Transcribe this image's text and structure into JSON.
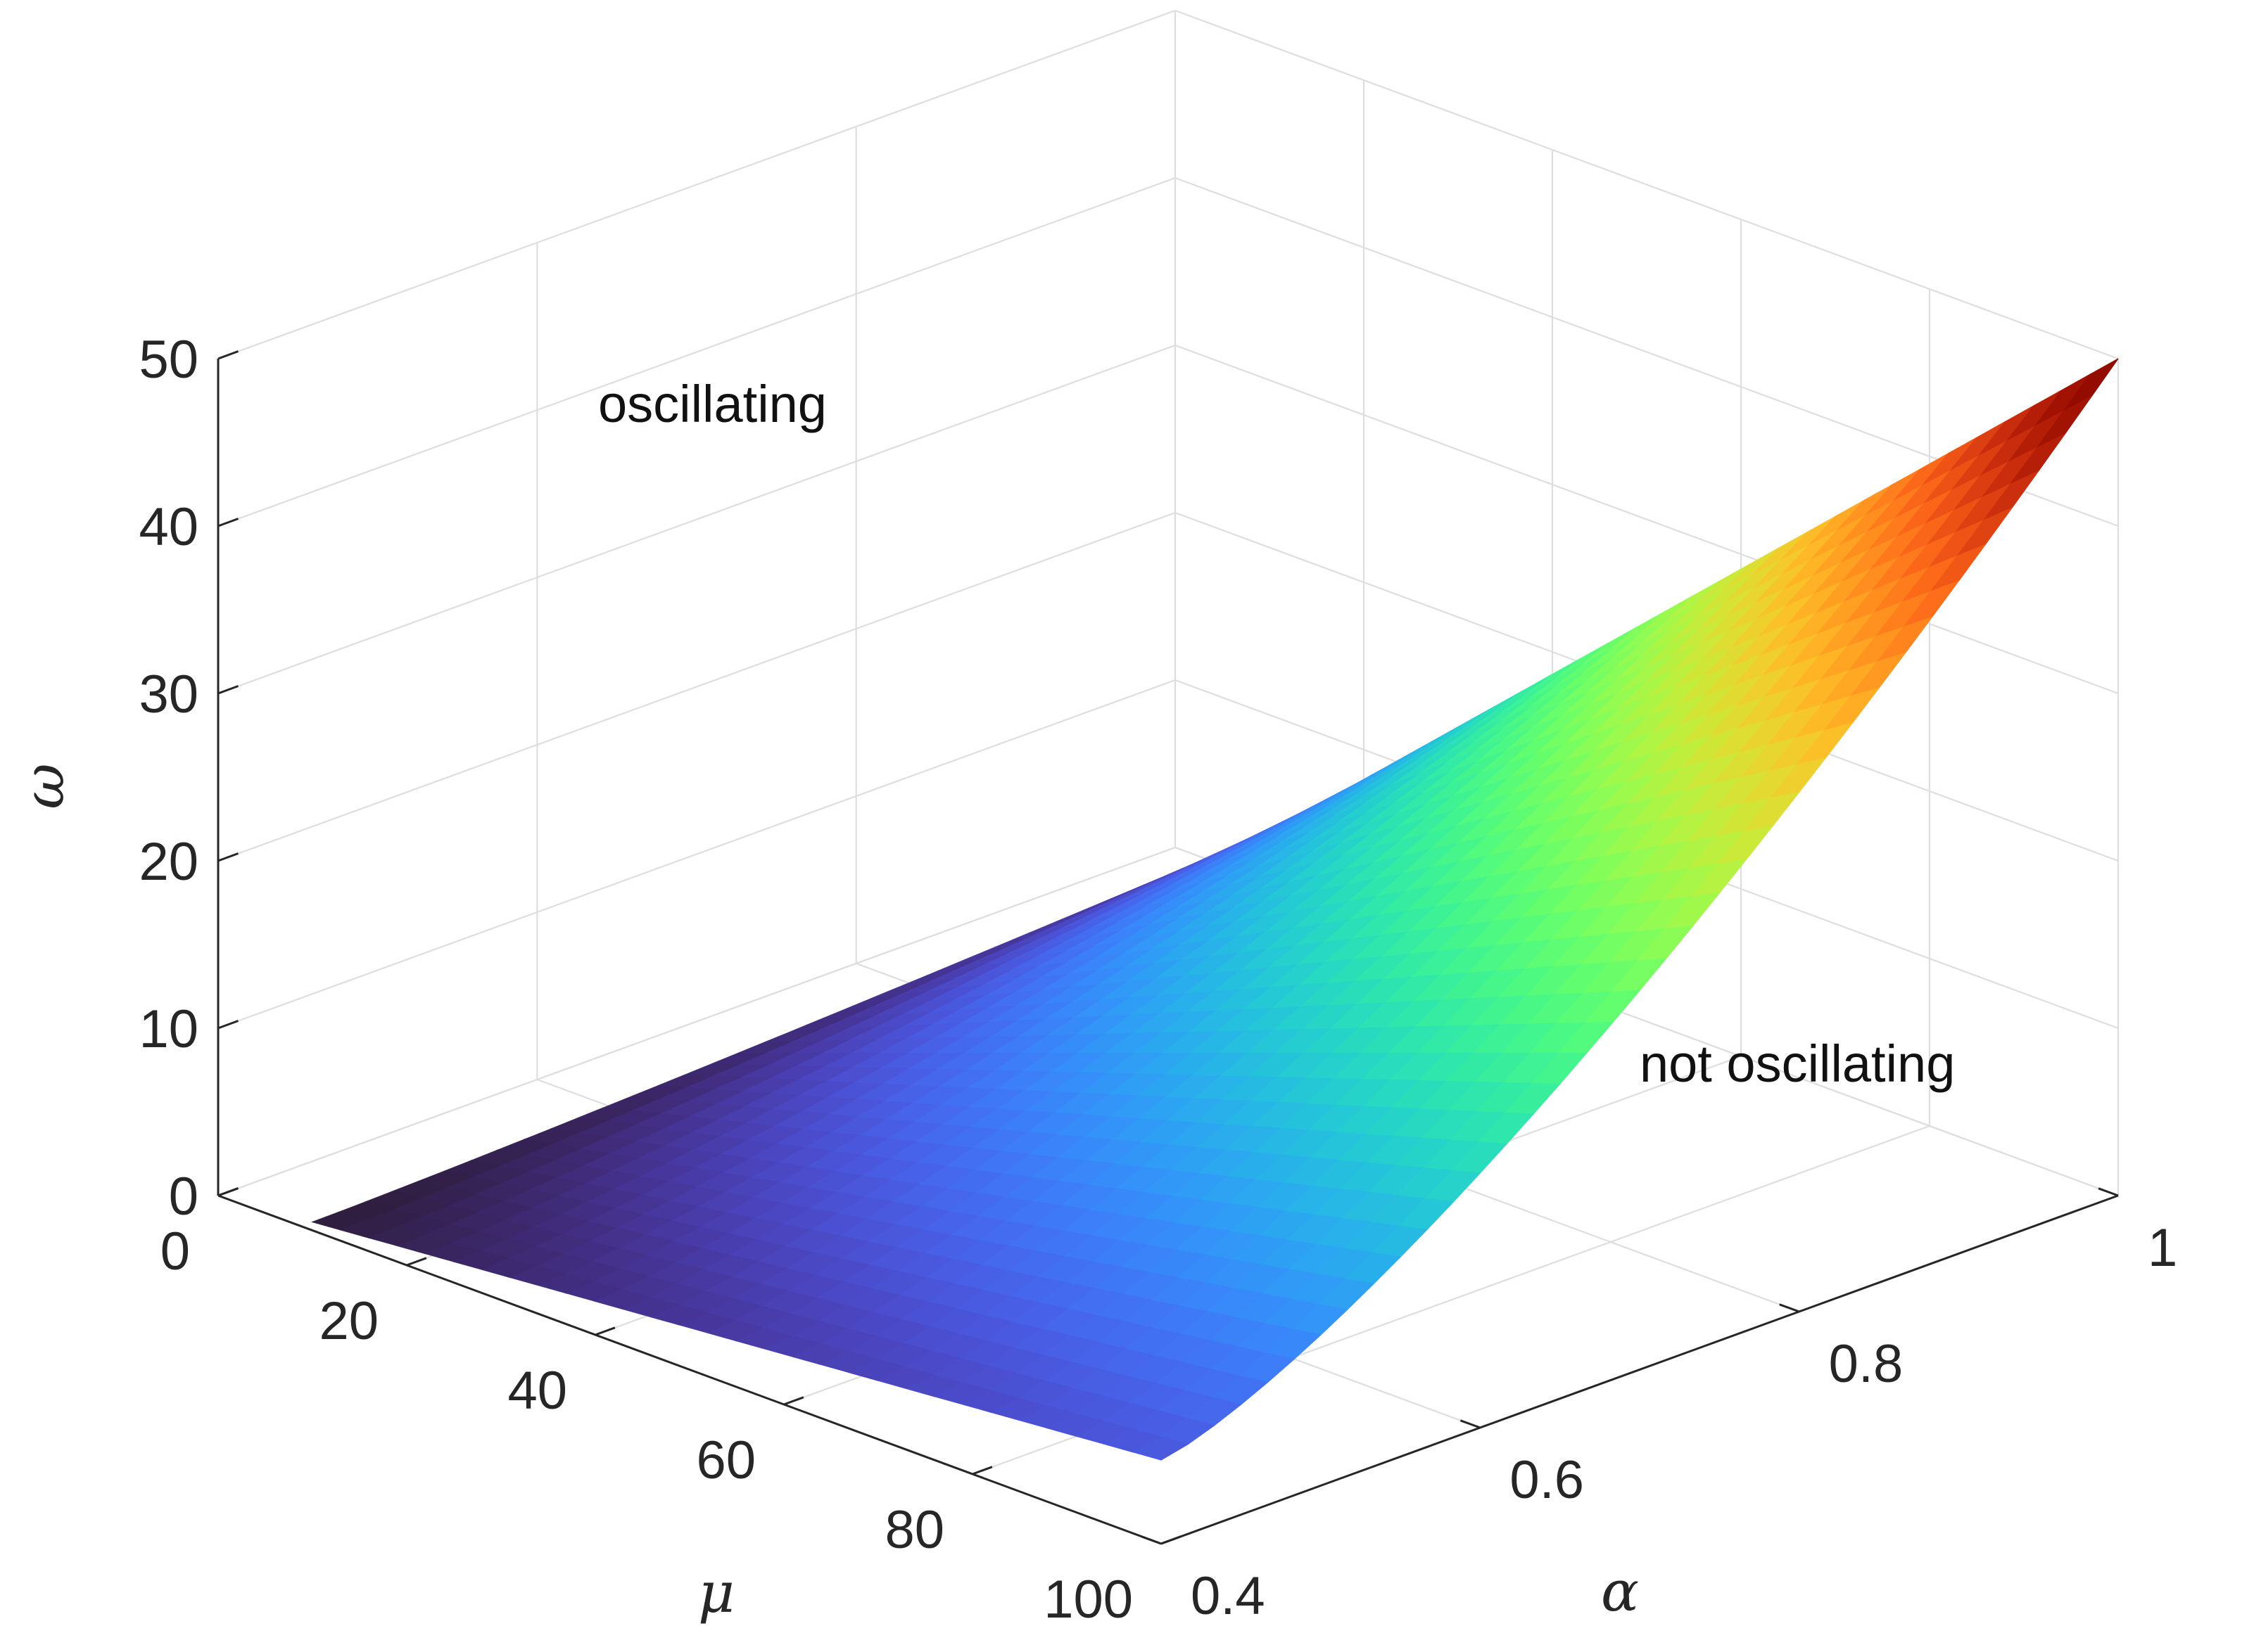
{
  "chart_data": {
    "type": "surface",
    "title": "",
    "xlabel": "μ",
    "ylabel": "α",
    "zlabel": "ω",
    "x_ticks": [
      0,
      20,
      40,
      60,
      80,
      100
    ],
    "y_ticks": [
      "0.4",
      "0.6",
      "0.8",
      "1"
    ],
    "z_ticks": [
      0,
      10,
      20,
      30,
      40,
      50
    ],
    "xlim": [
      0,
      100
    ],
    "ylim": [
      0.4,
      1
    ],
    "zlim": [
      0,
      50
    ],
    "grid": true,
    "colormap": "turbo",
    "surface": {
      "x_range": [
        10,
        100
      ],
      "y_range": [
        0.4,
        1
      ],
      "corner_values": [
        {
          "mu": 10,
          "alpha": 0.4,
          "omega": 0.5
        },
        {
          "mu": 100,
          "alpha": 0.4,
          "omega": 5
        },
        {
          "mu": 10,
          "alpha": 1,
          "omega": 3
        },
        {
          "mu": 100,
          "alpha": 1,
          "omega": 50
        }
      ]
    },
    "annotations": [
      {
        "text": "oscillating"
      },
      {
        "text": "not oscillating"
      }
    ]
  }
}
